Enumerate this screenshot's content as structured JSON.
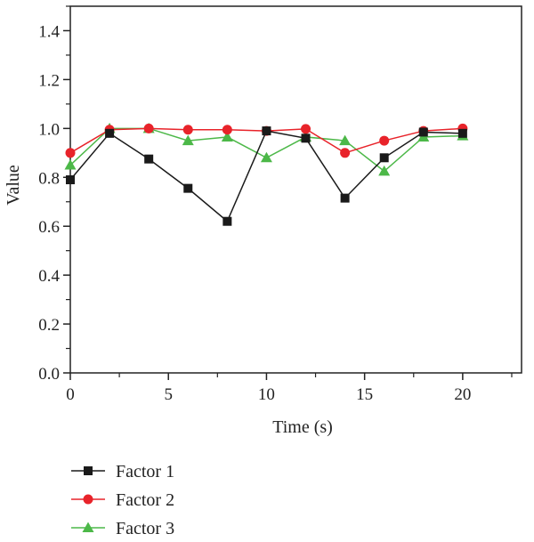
{
  "chart_data": {
    "type": "line",
    "xlabel": "Time (s)",
    "ylabel": "Value",
    "xlim": [
      0,
      23
    ],
    "ylim": [
      0,
      1.5
    ],
    "x_ticks": [
      0,
      5,
      10,
      15,
      20
    ],
    "x_tick_labels": [
      "0",
      "5",
      "10",
      "15",
      "20"
    ],
    "y_ticks": [
      0,
      0.2,
      0.4,
      0.6,
      0.8,
      1.0,
      1.2,
      1.4
    ],
    "y_tick_labels": [
      "0.0",
      "0.2",
      "0.4",
      "0.6",
      "0.8",
      "1.0",
      "1.2",
      "1.4"
    ],
    "grid": false,
    "legend_position": "bottom-left",
    "series": [
      {
        "name": "Factor 1",
        "color": "#1a1a1a",
        "marker": "square",
        "x": [
          0,
          2,
          4,
          6,
          8,
          10,
          12,
          14,
          16,
          18,
          20
        ],
        "y": [
          0.79,
          0.98,
          0.875,
          0.755,
          0.62,
          0.99,
          0.96,
          0.715,
          0.88,
          0.985,
          0.98
        ]
      },
      {
        "name": "Factor 2",
        "color": "#e8232a",
        "marker": "circle",
        "x": [
          0,
          2,
          4,
          6,
          8,
          10,
          12,
          14,
          16,
          18,
          20
        ],
        "y": [
          0.9,
          0.995,
          1.0,
          0.995,
          0.995,
          0.99,
          0.998,
          0.9,
          0.95,
          0.99,
          1.0
        ]
      },
      {
        "name": "Factor 3",
        "color": "#4cb848",
        "marker": "triangle",
        "x": [
          0,
          2,
          4,
          6,
          8,
          10,
          12,
          14,
          16,
          18,
          20
        ],
        "y": [
          0.85,
          1.0,
          1.0,
          0.95,
          0.965,
          0.88,
          0.965,
          0.95,
          0.825,
          0.965,
          0.97
        ]
      }
    ]
  }
}
